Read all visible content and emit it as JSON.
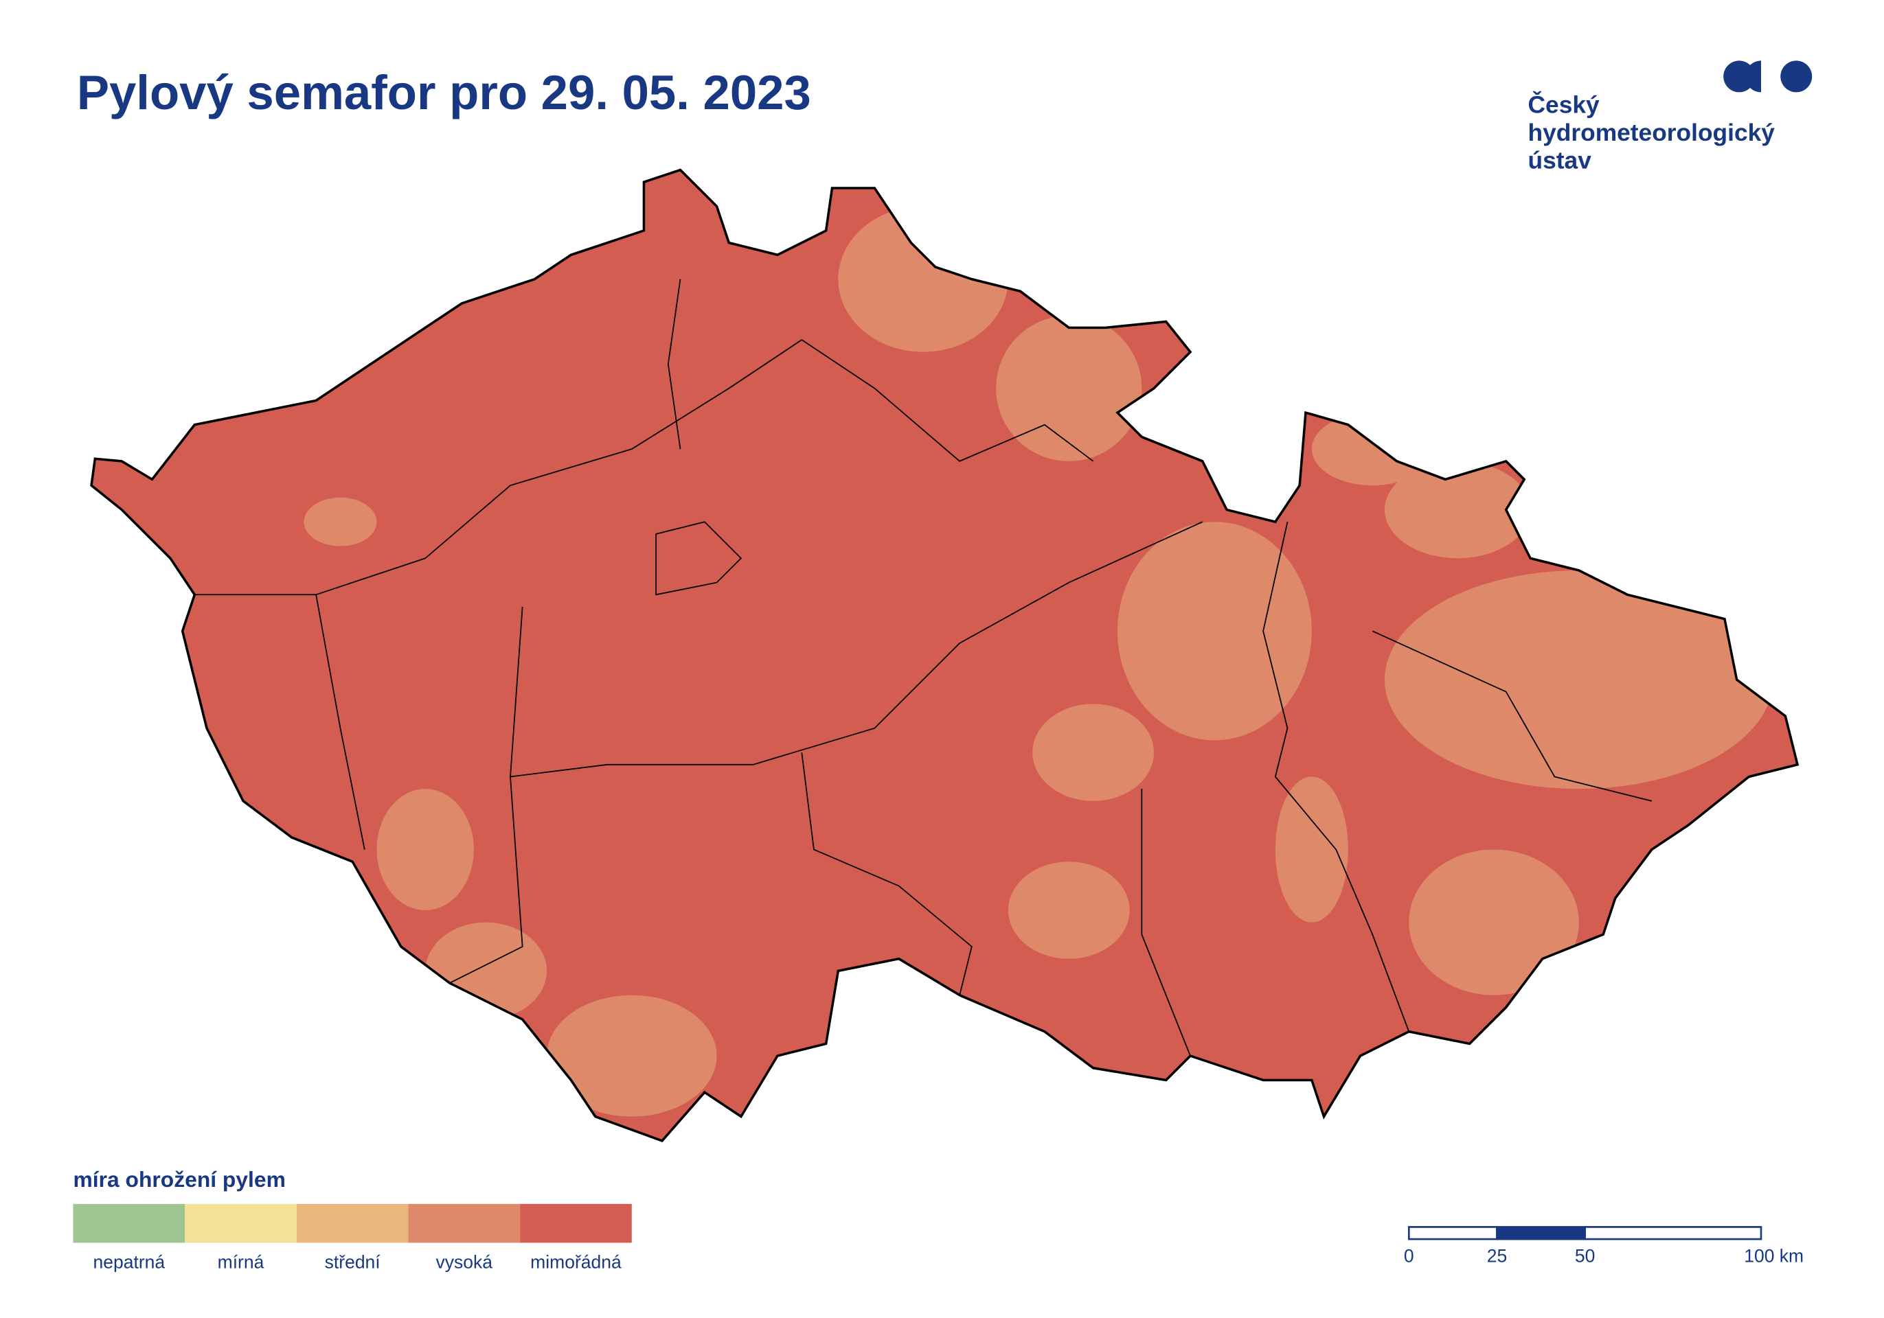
{
  "header": {
    "title": "Pylový semafor pro 29. 05. 2023",
    "logo_lines": [
      "Český",
      "hydrometeorologický",
      "ústav"
    ]
  },
  "legend": {
    "title": "míra ohrožení pylem",
    "items": [
      {
        "label": "nepatrná",
        "color": "#9dc491"
      },
      {
        "label": "mírná",
        "color": "#f5e196"
      },
      {
        "label": "střední",
        "color": "#ebb77f"
      },
      {
        "label": "vysoká",
        "color": "#de8a6a"
      },
      {
        "label": "mimořádná",
        "color": "#d45d51"
      }
    ]
  },
  "scale_bar": {
    "ticks": [
      {
        "value": 0,
        "label": "0"
      },
      {
        "value": 25,
        "label": "25"
      },
      {
        "value": 50,
        "label": "50"
      },
      {
        "value": 100,
        "label": "100 km"
      }
    ]
  }
}
